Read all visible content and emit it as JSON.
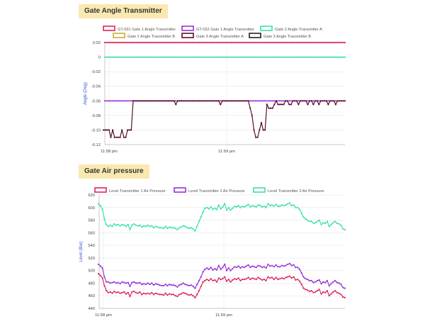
{
  "panels": [
    {
      "title": "Gate Angle Transmitter"
    },
    {
      "title": "Gate Air pressure"
    }
  ],
  "chart_data": [
    {
      "type": "line",
      "title": "Gate Angle Transmitter",
      "ylabel": "Angle (Deg)",
      "xlabel": "",
      "ylim": [
        -0.12,
        0.02
      ],
      "yticks": [
        "0.02",
        "0",
        "-0.02",
        "-0.04",
        "-0.06",
        "-0.08",
        "-0.10",
        "-0.12"
      ],
      "xticks": [
        "11:58 pm",
        "11:59 pm"
      ],
      "legend_position": "top",
      "grid": true,
      "series": [
        {
          "name": "GT-031 Gate 1 Angle Transmitter",
          "color": "#e0245e",
          "values": [
            0.02
          ],
          "constant": true
        },
        {
          "name": "GT-032 Gate 1 Angle Transmitter",
          "color": "#9b30d9",
          "values": [
            -0.06
          ],
          "constant": true
        },
        {
          "name": "Gate 2 Angle Transmitter A",
          "color": "#3ee0b0",
          "values": [
            0
          ],
          "constant": true
        },
        {
          "name": "Gate 2 Angle Transmitter B",
          "color": "#c8b030",
          "values": [],
          "constant": false
        },
        {
          "name": "Gate 3 Angle Transmitter A",
          "color": "#5a0f2a",
          "values": [
            -0.1,
            -0.1,
            -0.1,
            -0.1,
            -0.11,
            -0.1,
            -0.11,
            -0.11,
            -0.11,
            -0.11,
            -0.1,
            -0.11,
            -0.11,
            -0.1,
            -0.1,
            -0.1,
            -0.06,
            -0.06,
            -0.06,
            -0.06,
            -0.06,
            -0.06,
            -0.06,
            -0.06,
            -0.06,
            -0.06,
            -0.06,
            -0.06,
            -0.06,
            -0.06,
            -0.06,
            -0.06,
            -0.06,
            -0.06,
            -0.06,
            -0.06,
            -0.06,
            -0.06,
            -0.06,
            -0.065,
            -0.06,
            -0.06,
            -0.06,
            -0.06,
            -0.06,
            -0.06,
            -0.06,
            -0.06,
            -0.06,
            -0.06,
            -0.06,
            -0.06,
            -0.06,
            -0.06,
            -0.06,
            -0.06,
            -0.06,
            -0.06,
            -0.06,
            -0.06,
            -0.06,
            -0.06,
            -0.06,
            -0.065,
            -0.06,
            -0.06,
            -0.06,
            -0.06,
            -0.06,
            -0.06,
            -0.06,
            -0.06,
            -0.06,
            -0.06,
            -0.06,
            -0.06,
            -0.06,
            -0.06,
            -0.06,
            -0.07,
            -0.08,
            -0.1,
            -0.11,
            -0.11,
            -0.1,
            -0.09,
            -0.1,
            -0.1,
            -0.065,
            -0.07,
            -0.07,
            -0.07,
            -0.065,
            -0.06,
            -0.065,
            -0.065,
            -0.065,
            -0.065,
            -0.06,
            -0.06,
            -0.065,
            -0.065,
            -0.06,
            -0.06,
            -0.06,
            -0.065,
            -0.06,
            -0.06,
            -0.06,
            -0.06,
            -0.065,
            -0.06,
            -0.06,
            -0.065,
            -0.06,
            -0.06,
            -0.065,
            -0.06,
            -0.06,
            -0.06,
            -0.06,
            -0.065,
            -0.06,
            -0.06,
            -0.06,
            -0.065,
            -0.06,
            -0.06,
            -0.06,
            -0.06,
            -0.06
          ]
        },
        {
          "name": "Gate 3 Angle Transmitter B",
          "color": "#222222",
          "values": [],
          "constant": false
        }
      ]
    },
    {
      "type": "line",
      "title": "Gate Air pressure",
      "ylabel": "Level (Bar)",
      "xlabel": "",
      "ylim": [
        440,
        620
      ],
      "yticks": [
        "620",
        "600",
        "580",
        "560",
        "540",
        "520",
        "500",
        "480",
        "460",
        "440"
      ],
      "xticks": [
        "11:58 pm",
        "11:59 pm"
      ],
      "legend_position": "top",
      "grid": true,
      "series": [
        {
          "name": "Level Transmitter 1 Air Pressure",
          "color": "#e0245e",
          "values": [
            495,
            492,
            488,
            476,
            468,
            465,
            466,
            464,
            467,
            465,
            466,
            464,
            465,
            466,
            463,
            465,
            459,
            466,
            467,
            465,
            464,
            466,
            462,
            464,
            463,
            464,
            463,
            465,
            462,
            464,
            463,
            462,
            462,
            461,
            464,
            461,
            463,
            462,
            462,
            460,
            459,
            462,
            463,
            465,
            464,
            462,
            461,
            462,
            460,
            457,
            462,
            468,
            475,
            482,
            484,
            486,
            484,
            487,
            484,
            485,
            482,
            488,
            486,
            487,
            490,
            483,
            486,
            482,
            485,
            487,
            486,
            488,
            484,
            486,
            486,
            487,
            489,
            486,
            488,
            487,
            486,
            489,
            487,
            485,
            486,
            484,
            490,
            488,
            489,
            486,
            489,
            486,
            487,
            488,
            487,
            489,
            490,
            491,
            488,
            490,
            485,
            486,
            483,
            478,
            472,
            470,
            469,
            467,
            468,
            465,
            466,
            468,
            470,
            463,
            466,
            465,
            468,
            460,
            463,
            466,
            468,
            465,
            464,
            462,
            458,
            457
          ]
        },
        {
          "name": "Level Transmitter 2 Air Pressure",
          "color": "#9b30d9",
          "values": [
            510,
            507,
            504,
            490,
            482,
            482,
            480,
            481,
            482,
            480,
            481,
            479,
            482,
            481,
            480,
            481,
            475,
            481,
            482,
            480,
            480,
            481,
            478,
            479,
            478,
            480,
            478,
            480,
            477,
            479,
            478,
            477,
            476,
            476,
            478,
            476,
            478,
            477,
            477,
            476,
            474,
            477,
            478,
            480,
            478,
            477,
            476,
            477,
            475,
            472,
            478,
            484,
            490,
            498,
            502,
            504,
            502,
            505,
            501,
            503,
            501,
            508,
            502,
            505,
            510,
            500,
            504,
            500,
            503,
            506,
            505,
            507,
            504,
            506,
            505,
            507,
            509,
            505,
            507,
            506,
            505,
            508,
            507,
            505,
            506,
            504,
            510,
            507,
            508,
            506,
            509,
            506,
            506,
            508,
            507,
            508,
            510,
            511,
            508,
            509,
            505,
            505,
            502,
            496,
            490,
            487,
            486,
            484,
            484,
            481,
            482,
            484,
            485,
            479,
            482,
            481,
            484,
            476,
            479,
            482,
            484,
            481,
            480,
            478,
            473,
            472
          ]
        },
        {
          "name": "Level Transmitter 3 Air Pressure",
          "color": "#3ee0b0",
          "values": [
            606,
            603,
            597,
            582,
            573,
            570,
            572,
            570,
            574,
            572,
            573,
            571,
            573,
            572,
            570,
            573,
            565,
            572,
            574,
            572,
            571,
            572,
            569,
            571,
            570,
            572,
            570,
            571,
            568,
            570,
            569,
            568,
            568,
            567,
            570,
            567,
            569,
            568,
            568,
            567,
            565,
            568,
            569,
            571,
            570,
            568,
            567,
            568,
            566,
            563,
            570,
            578,
            585,
            593,
            599,
            600,
            598,
            601,
            597,
            599,
            597,
            604,
            598,
            601,
            606,
            596,
            600,
            596,
            599,
            602,
            601,
            603,
            600,
            602,
            601,
            603,
            605,
            601,
            603,
            602,
            601,
            604,
            603,
            601,
            602,
            600,
            606,
            603,
            604,
            602,
            605,
            602,
            602,
            604,
            603,
            604,
            606,
            607,
            603,
            604,
            600,
            600,
            597,
            591,
            585,
            582,
            580,
            578,
            578,
            575,
            576,
            578,
            580,
            573,
            576,
            575,
            578,
            570,
            573,
            576,
            578,
            575,
            574,
            572,
            566,
            565
          ]
        }
      ]
    }
  ]
}
